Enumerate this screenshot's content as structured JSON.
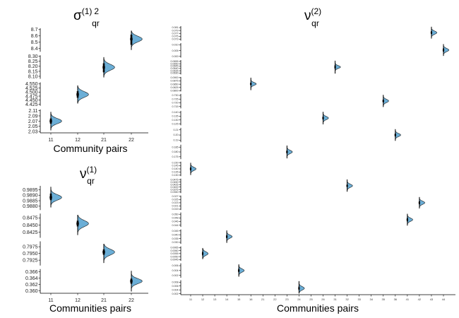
{
  "titles": {
    "sigma": {
      "base": "σ",
      "sup1": "(1)",
      "sup2": "2",
      "sub": "qr"
    },
    "nu1": {
      "base": "ν",
      "sup": "(1)",
      "sub": "qr"
    },
    "nu2": {
      "base": "ν",
      "sup": "(2)",
      "sub": "qr"
    }
  },
  "colors": {
    "violin_fill": "#6baed6",
    "violin_stroke": "#1a1a1a",
    "point": "#000000",
    "bar": "#000000"
  },
  "chart_data": [
    {
      "id": "sigma",
      "type": "violin",
      "xlabel": "Community pairs",
      "categories": [
        "11",
        "12",
        "21",
        "22"
      ],
      "facets": [
        {
          "category": "22",
          "ticks": [
            "8.7",
            "8.6",
            "8.5",
            "8.4"
          ],
          "ylim": [
            8.35,
            8.72
          ],
          "median": 8.55,
          "lo": 8.38,
          "hi": 8.68,
          "wlo": 8.46,
          "whi": 8.62,
          "spread": 0.045,
          "width": 0.9
        },
        {
          "category": "21",
          "ticks": [
            "8.30",
            "8.25",
            "8.20",
            "8.15",
            "8.10"
          ],
          "ylim": [
            8.075,
            8.31
          ],
          "median": 8.19,
          "lo": 8.09,
          "hi": 8.29,
          "wlo": 8.14,
          "whi": 8.23,
          "spread": 0.03,
          "width": 0.9
        },
        {
          "category": "12",
          "ticks": [
            "4.550",
            "4.525",
            "4.500",
            "4.475",
            "4.450",
            "4.425"
          ],
          "ylim": [
            4.415,
            4.56
          ],
          "median": 4.485,
          "lo": 4.43,
          "hi": 4.54,
          "wlo": 4.465,
          "whi": 4.505,
          "spread": 0.018,
          "width": 0.9
        },
        {
          "category": "11",
          "ticks": [
            "2.11",
            "2.09",
            "2.07",
            "2.05",
            "2.03"
          ],
          "ylim": [
            2.025,
            2.115
          ],
          "median": 2.07,
          "lo": 2.035,
          "hi": 2.105,
          "wlo": 2.06,
          "whi": 2.08,
          "spread": 0.01,
          "width": 0.9
        }
      ]
    },
    {
      "id": "nu1",
      "type": "violin",
      "xlabel": "Communities pairs",
      "categories": [
        "11",
        "12",
        "21",
        "22"
      ],
      "facets": [
        {
          "category": "11",
          "ticks": [
            "0.9895",
            "0.9890",
            "0.9885",
            "0.9880"
          ],
          "ylim": [
            0.98765,
            0.98985
          ],
          "median": 0.9888,
          "lo": 0.9879,
          "hi": 0.98975,
          "wlo": 0.98855,
          "whi": 0.98915,
          "spread": 0.00025,
          "width": 0.9
        },
        {
          "category": "12",
          "ticks": [
            "0.8475",
            "0.8450",
            "0.8425"
          ],
          "ylim": [
            0.8405,
            0.849
          ],
          "median": 0.8455,
          "lo": 0.8415,
          "hi": 0.8485,
          "wlo": 0.8445,
          "whi": 0.8465,
          "spread": 0.0011,
          "width": 0.9
        },
        {
          "category": "21",
          "ticks": [
            "0.7975",
            "0.7950",
            "0.7925"
          ],
          "ylim": [
            0.7905,
            0.7995
          ],
          "median": 0.7955,
          "lo": 0.7915,
          "hi": 0.7985,
          "wlo": 0.7945,
          "whi": 0.7965,
          "spread": 0.0011,
          "width": 0.9
        },
        {
          "category": "22",
          "ticks": [
            "0.366",
            "0.364",
            "0.362",
            "0.360"
          ],
          "ylim": [
            0.3592,
            0.3668
          ],
          "median": 0.363,
          "lo": 0.3598,
          "hi": 0.3662,
          "wlo": 0.3622,
          "whi": 0.3638,
          "spread": 0.0008,
          "width": 0.9
        }
      ]
    },
    {
      "id": "nu2",
      "type": "violin",
      "xlabel": "Communities pairs",
      "categories": [
        "11",
        "12",
        "13",
        "14",
        "15",
        "16",
        "21",
        "22",
        "23",
        "24",
        "25",
        "26",
        "31",
        "32",
        "33",
        "34",
        "35",
        "36",
        "41",
        "42",
        "43",
        "44"
      ],
      "facets": [
        {
          "category": "43",
          "ticks": [
            "0.081",
            "0.079",
            "0.077",
            "0.075",
            "0.073"
          ],
          "ylim": [
            0.072,
            0.082
          ],
          "median": 0.0775,
          "lo": 0.0735,
          "hi": 0.0815,
          "wlo": 0.0765,
          "whi": 0.0785,
          "spread": 0.0011,
          "width": 0.5
        },
        {
          "category": "44",
          "ticks": [
            "0.010",
            "0.005",
            "0.000"
          ],
          "ylim": [
            -0.001,
            0.0115
          ],
          "median": 0.0055,
          "lo": 0.0005,
          "hi": 0.0105,
          "wlo": 0.004,
          "whi": 0.007,
          "spread": 0.0014,
          "width": 0.5
        },
        {
          "category": "31",
          "ticks": [
            "0.0655",
            "0.0650",
            "0.0645",
            "0.0640",
            "0.0635",
            "0.0630"
          ],
          "ylim": [
            0.0627,
            0.0658
          ],
          "median": 0.0643,
          "lo": 0.0629,
          "hi": 0.0656,
          "wlo": 0.0639,
          "whi": 0.0647,
          "spread": 0.0003,
          "width": 0.5
        },
        {
          "category": "16",
          "ticks": [
            "0.0900",
            "0.0875",
            "0.0850",
            "0.0825",
            "0.0800"
          ],
          "ylim": [
            0.0795,
            0.0905
          ],
          "median": 0.0852,
          "lo": 0.0805,
          "hi": 0.0898,
          "wlo": 0.0842,
          "whi": 0.0862,
          "spread": 0.0011,
          "width": 0.5
        },
        {
          "category": "35",
          "ticks": [
            "0.730",
            "0.725",
            "0.720",
            "0.715"
          ],
          "ylim": [
            0.7125,
            0.732
          ],
          "median": 0.7225,
          "lo": 0.7145,
          "hi": 0.7305,
          "wlo": 0.7205,
          "whi": 0.7245,
          "spread": 0.0022,
          "width": 0.5
        },
        {
          "category": "26",
          "ticks": [
            "0.140",
            "0.135",
            "0.130",
            "0.125"
          ],
          "ylim": [
            0.123,
            0.142
          ],
          "median": 0.1325,
          "lo": 0.1245,
          "hi": 0.1405,
          "wlo": 0.1305,
          "whi": 0.1345,
          "spread": 0.0021,
          "width": 0.5
        },
        {
          "category": "36",
          "ticks": [
            "0.21",
            "0.20",
            "0.19"
          ],
          "ylim": [
            0.186,
            0.214
          ],
          "median": 0.2,
          "lo": 0.189,
          "hi": 0.211,
          "wlo": 0.197,
          "whi": 0.203,
          "spread": 0.003,
          "width": 0.5
        },
        {
          "category": "23",
          "ticks": [
            "0.185",
            "0.180",
            "0.175"
          ],
          "ylim": [
            0.1725,
            0.1875
          ],
          "median": 0.18,
          "lo": 0.1735,
          "hi": 0.1865,
          "wlo": 0.1785,
          "whi": 0.1815,
          "spread": 0.0017,
          "width": 0.5
        },
        {
          "category": "11",
          "ticks": [
            "0.150",
            "0.145",
            "0.140",
            "0.135",
            "0.130"
          ],
          "ylim": [
            0.1285,
            0.1515
          ],
          "median": 0.14,
          "lo": 0.1305,
          "hi": 0.1495,
          "wlo": 0.1375,
          "whi": 0.1425,
          "spread": 0.0026,
          "width": 0.5
        },
        {
          "category": "32",
          "ticks": [
            "0.0475",
            "0.0450",
            "0.0425",
            "0.0400",
            "0.0375",
            "0.0350"
          ],
          "ylim": [
            0.034,
            0.0485
          ],
          "median": 0.0413,
          "lo": 0.0355,
          "hi": 0.0475,
          "wlo": 0.04,
          "whi": 0.0425,
          "spread": 0.0016,
          "width": 0.5
        },
        {
          "category": "42",
          "ticks": [
            "0.027",
            "0.025",
            "0.023",
            "0.021",
            "0.019"
          ],
          "ylim": [
            0.0185,
            0.0275
          ],
          "median": 0.023,
          "lo": 0.0195,
          "hi": 0.0265,
          "wlo": 0.022,
          "whi": 0.024,
          "spread": 0.001,
          "width": 0.5
        },
        {
          "category": "41",
          "ticks": [
            "0.050",
            "0.048",
            "0.046",
            "0.044"
          ],
          "ylim": [
            0.043,
            0.051
          ],
          "median": 0.047,
          "lo": 0.0438,
          "hi": 0.0502,
          "wlo": 0.046,
          "whi": 0.048,
          "spread": 0.0009,
          "width": 0.5
        },
        {
          "category": "14",
          "ticks": [
            "0.045",
            "0.040",
            "0.035",
            "0.030"
          ],
          "ylim": [
            0.028,
            0.047
          ],
          "median": 0.0375,
          "lo": 0.0295,
          "hi": 0.0455,
          "wlo": 0.0355,
          "whi": 0.0395,
          "spread": 0.0021,
          "width": 0.5
        },
        {
          "category": "12",
          "ticks": [
            "0.0065",
            "0.0060",
            "0.0055",
            "0.0050",
            "0.0045"
          ],
          "ylim": [
            0.0043,
            0.0067
          ],
          "median": 0.0055,
          "lo": 0.0046,
          "hi": 0.0064,
          "wlo": 0.0052,
          "whi": 0.0058,
          "spread": 0.0003,
          "width": 0.5
        },
        {
          "category": "15",
          "ticks": [
            "0.006",
            "0.004",
            "0.002"
          ],
          "ylim": [
            0.001,
            0.007
          ],
          "median": 0.004,
          "lo": 0.0015,
          "hi": 0.0065,
          "wlo": 0.0033,
          "whi": 0.0047,
          "spread": 0.0007,
          "width": 0.5
        },
        {
          "category": "24",
          "ticks": [
            "0.008",
            "0.006",
            "0.004",
            "0.002"
          ],
          "ylim": [
            0.0015,
            0.009
          ],
          "median": 0.0048,
          "lo": 0.0022,
          "hi": 0.0085,
          "wlo": 0.004,
          "whi": 0.0057,
          "spread": 0.0009,
          "width": 0.5
        }
      ]
    }
  ],
  "nu2_xticks": [
    "11",
    "12",
    "13",
    "14",
    "15",
    "16",
    "21",
    "22",
    "23",
    "24",
    "25",
    "26",
    "31",
    "32",
    "33",
    "34",
    "35",
    "36",
    "41",
    "42",
    "43",
    "44"
  ]
}
